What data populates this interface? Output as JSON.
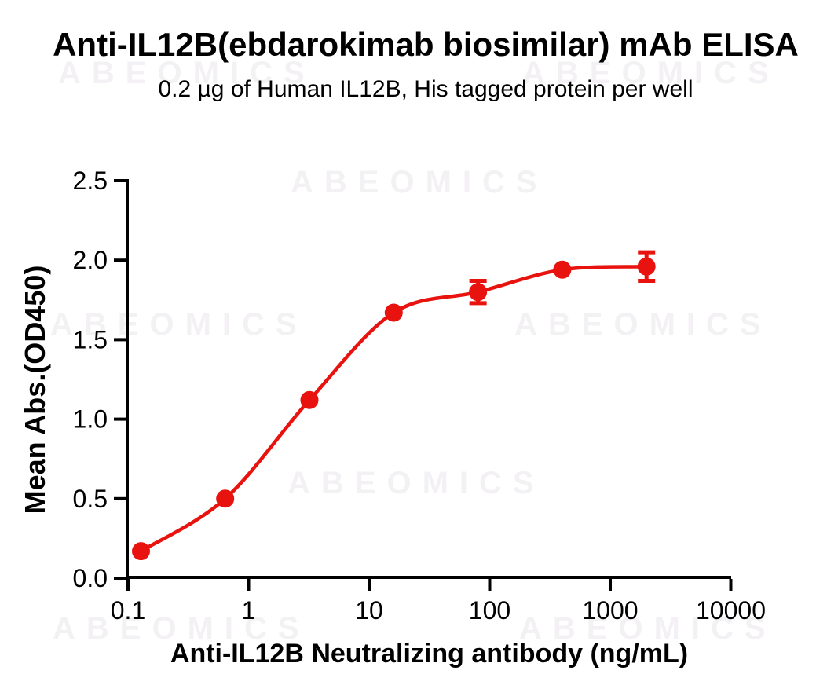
{
  "header": {
    "title": "Anti-IL12B(ebdarokimab biosimilar) mAb ELISA",
    "subtitle": "0.2 µg of Human IL12B, His tagged protein per well"
  },
  "watermark": {
    "text": "ABEOMICS"
  },
  "colors": {
    "accent": "#e8120e",
    "axis": "#000000",
    "watermark": "#f3f1f4",
    "background": "#ffffff"
  },
  "chart_data": {
    "type": "scatter",
    "title": "Anti-IL12B(ebdarokimab biosimilar) mAb ELISA",
    "subtitle": "0.2 µg of Human IL12B, His tagged protein per well",
    "xlabel": "Anti-IL12B Neutralizing antibody (ng/mL)",
    "ylabel": "Mean Abs.(OD450)",
    "x_scale": "log10",
    "xlim": [
      0.1,
      10000
    ],
    "ylim": [
      0.0,
      2.5
    ],
    "x_ticks": [
      0.1,
      1,
      10,
      100,
      1000,
      10000
    ],
    "x_tick_labels": [
      "0.1",
      "1",
      "10",
      "100",
      "1000",
      "10000"
    ],
    "y_ticks": [
      0.0,
      0.5,
      1.0,
      1.5,
      2.0,
      2.5
    ],
    "y_tick_labels": [
      "0.0",
      "0.5",
      "1.0",
      "1.5",
      "2.0",
      "2.5"
    ],
    "grid": false,
    "legend": "none",
    "series": [
      {
        "name": "Anti-IL12B neutralizing antibody",
        "marker": "circle",
        "color": "#e8120e",
        "fit": "sigmoidal dose-response (4PL), curve drawn through points",
        "x": [
          0.128,
          0.64,
          3.2,
          16,
          80,
          400,
          2000
        ],
        "y": [
          0.17,
          0.5,
          1.12,
          1.67,
          1.8,
          1.94,
          1.96
        ],
        "y_err": [
          0,
          0,
          0,
          0,
          0.07,
          0,
          0.09
        ]
      }
    ]
  }
}
